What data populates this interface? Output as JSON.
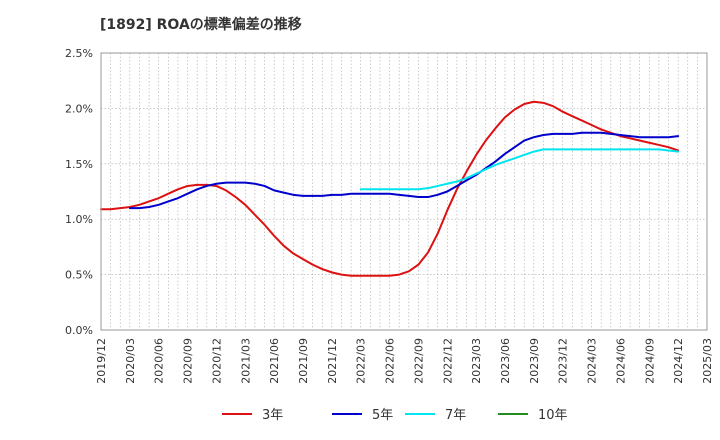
{
  "chart_data": {
    "type": "line",
    "title": "[1892]  ROAの標準偏差の推移",
    "xlabel": "",
    "ylabel": "",
    "x_ticks": [
      "2019/12",
      "2020/03",
      "2020/06",
      "2020/09",
      "2020/12",
      "2021/03",
      "2021/06",
      "2021/09",
      "2021/12",
      "2022/03",
      "2022/06",
      "2022/09",
      "2022/12",
      "2023/03",
      "2023/06",
      "2023/09",
      "2023/12",
      "2024/03",
      "2024/06",
      "2024/09",
      "2024/12",
      "2025/03"
    ],
    "y_ticks": [
      "0.0%",
      "0.5%",
      "1.0%",
      "1.5%",
      "2.0%",
      "2.5%"
    ],
    "ylim": [
      0,
      2.5
    ],
    "grid": true,
    "legend_position": "bottom",
    "series": [
      {
        "name": "3年",
        "color": "#dd1111",
        "points": [
          [
            "2019/12",
            1.09
          ],
          [
            "2020/01",
            1.09
          ],
          [
            "2020/02",
            1.1
          ],
          [
            "2020/03",
            1.11
          ],
          [
            "2020/04",
            1.13
          ],
          [
            "2020/05",
            1.16
          ],
          [
            "2020/06",
            1.19
          ],
          [
            "2020/07",
            1.23
          ],
          [
            "2020/08",
            1.27
          ],
          [
            "2020/09",
            1.3
          ],
          [
            "2020/10",
            1.31
          ],
          [
            "2020/11",
            1.31
          ],
          [
            "2020/12",
            1.3
          ],
          [
            "2021/01",
            1.26
          ],
          [
            "2021/02",
            1.2
          ],
          [
            "2021/03",
            1.13
          ],
          [
            "2021/04",
            1.04
          ],
          [
            "2021/05",
            0.95
          ],
          [
            "2021/06",
            0.85
          ],
          [
            "2021/07",
            0.76
          ],
          [
            "2021/08",
            0.69
          ],
          [
            "2021/09",
            0.64
          ],
          [
            "2021/10",
            0.59
          ],
          [
            "2021/11",
            0.55
          ],
          [
            "2021/12",
            0.52
          ],
          [
            "2022/01",
            0.5
          ],
          [
            "2022/02",
            0.49
          ],
          [
            "2022/03",
            0.49
          ],
          [
            "2022/04",
            0.49
          ],
          [
            "2022/05",
            0.49
          ],
          [
            "2022/06",
            0.49
          ],
          [
            "2022/07",
            0.5
          ],
          [
            "2022/08",
            0.53
          ],
          [
            "2022/09",
            0.59
          ],
          [
            "2022/10",
            0.7
          ],
          [
            "2022/11",
            0.87
          ],
          [
            "2022/12",
            1.08
          ],
          [
            "2023/01",
            1.27
          ],
          [
            "2023/02",
            1.43
          ],
          [
            "2023/03",
            1.58
          ],
          [
            "2023/04",
            1.71
          ],
          [
            "2023/05",
            1.82
          ],
          [
            "2023/06",
            1.92
          ],
          [
            "2023/07",
            1.99
          ],
          [
            "2023/08",
            2.04
          ],
          [
            "2023/09",
            2.06
          ],
          [
            "2023/10",
            2.05
          ],
          [
            "2023/11",
            2.02
          ],
          [
            "2023/12",
            1.97
          ],
          [
            "2024/01",
            1.93
          ],
          [
            "2024/02",
            1.89
          ],
          [
            "2024/03",
            1.85
          ],
          [
            "2024/04",
            1.81
          ],
          [
            "2024/05",
            1.78
          ],
          [
            "2024/06",
            1.75
          ],
          [
            "2024/07",
            1.73
          ],
          [
            "2024/08",
            1.71
          ],
          [
            "2024/09",
            1.69
          ],
          [
            "2024/10",
            1.67
          ],
          [
            "2024/11",
            1.65
          ],
          [
            "2024/12",
            1.62
          ]
        ]
      },
      {
        "name": "5年",
        "color": "#0000cc",
        "points": [
          [
            "2020/03",
            1.1
          ],
          [
            "2020/04",
            1.1
          ],
          [
            "2020/05",
            1.11
          ],
          [
            "2020/06",
            1.13
          ],
          [
            "2020/07",
            1.16
          ],
          [
            "2020/08",
            1.19
          ],
          [
            "2020/09",
            1.23
          ],
          [
            "2020/10",
            1.27
          ],
          [
            "2020/11",
            1.3
          ],
          [
            "2020/12",
            1.32
          ],
          [
            "2021/01",
            1.33
          ],
          [
            "2021/02",
            1.33
          ],
          [
            "2021/03",
            1.33
          ],
          [
            "2021/04",
            1.32
          ],
          [
            "2021/05",
            1.3
          ],
          [
            "2021/06",
            1.26
          ],
          [
            "2021/07",
            1.24
          ],
          [
            "2021/08",
            1.22
          ],
          [
            "2021/09",
            1.21
          ],
          [
            "2021/10",
            1.21
          ],
          [
            "2021/11",
            1.21
          ],
          [
            "2021/12",
            1.22
          ],
          [
            "2022/01",
            1.22
          ],
          [
            "2022/02",
            1.23
          ],
          [
            "2022/03",
            1.23
          ],
          [
            "2022/04",
            1.23
          ],
          [
            "2022/05",
            1.23
          ],
          [
            "2022/06",
            1.23
          ],
          [
            "2022/07",
            1.22
          ],
          [
            "2022/08",
            1.21
          ],
          [
            "2022/09",
            1.2
          ],
          [
            "2022/10",
            1.2
          ],
          [
            "2022/11",
            1.22
          ],
          [
            "2022/12",
            1.25
          ],
          [
            "2023/01",
            1.3
          ],
          [
            "2023/02",
            1.35
          ],
          [
            "2023/03",
            1.4
          ],
          [
            "2023/04",
            1.46
          ],
          [
            "2023/05",
            1.52
          ],
          [
            "2023/06",
            1.59
          ],
          [
            "2023/07",
            1.65
          ],
          [
            "2023/08",
            1.71
          ],
          [
            "2023/09",
            1.74
          ],
          [
            "2023/10",
            1.76
          ],
          [
            "2023/11",
            1.77
          ],
          [
            "2023/12",
            1.77
          ],
          [
            "2024/01",
            1.77
          ],
          [
            "2024/02",
            1.78
          ],
          [
            "2024/03",
            1.78
          ],
          [
            "2024/04",
            1.78
          ],
          [
            "2024/05",
            1.77
          ],
          [
            "2024/06",
            1.76
          ],
          [
            "2024/07",
            1.75
          ],
          [
            "2024/08",
            1.74
          ],
          [
            "2024/09",
            1.74
          ],
          [
            "2024/10",
            1.74
          ],
          [
            "2024/11",
            1.74
          ],
          [
            "2024/12",
            1.75
          ]
        ]
      },
      {
        "name": "7年",
        "color": "#00e5ee",
        "points": [
          [
            "2022/03",
            1.27
          ],
          [
            "2022/04",
            1.27
          ],
          [
            "2022/05",
            1.27
          ],
          [
            "2022/06",
            1.27
          ],
          [
            "2022/07",
            1.27
          ],
          [
            "2022/08",
            1.27
          ],
          [
            "2022/09",
            1.27
          ],
          [
            "2022/10",
            1.28
          ],
          [
            "2022/11",
            1.3
          ],
          [
            "2022/12",
            1.32
          ],
          [
            "2023/01",
            1.34
          ],
          [
            "2023/02",
            1.37
          ],
          [
            "2023/03",
            1.41
          ],
          [
            "2023/04",
            1.45
          ],
          [
            "2023/05",
            1.49
          ],
          [
            "2023/06",
            1.52
          ],
          [
            "2023/07",
            1.55
          ],
          [
            "2023/08",
            1.58
          ],
          [
            "2023/09",
            1.61
          ],
          [
            "2023/10",
            1.63
          ],
          [
            "2023/11",
            1.63
          ],
          [
            "2023/12",
            1.63
          ],
          [
            "2024/01",
            1.63
          ],
          [
            "2024/02",
            1.63
          ],
          [
            "2024/03",
            1.63
          ],
          [
            "2024/04",
            1.63
          ],
          [
            "2024/05",
            1.63
          ],
          [
            "2024/06",
            1.63
          ],
          [
            "2024/07",
            1.63
          ],
          [
            "2024/08",
            1.63
          ],
          [
            "2024/09",
            1.63
          ],
          [
            "2024/10",
            1.63
          ],
          [
            "2024/11",
            1.62
          ],
          [
            "2024/12",
            1.61
          ]
        ]
      },
      {
        "name": "10年",
        "color": "#228b22",
        "points": []
      }
    ]
  }
}
